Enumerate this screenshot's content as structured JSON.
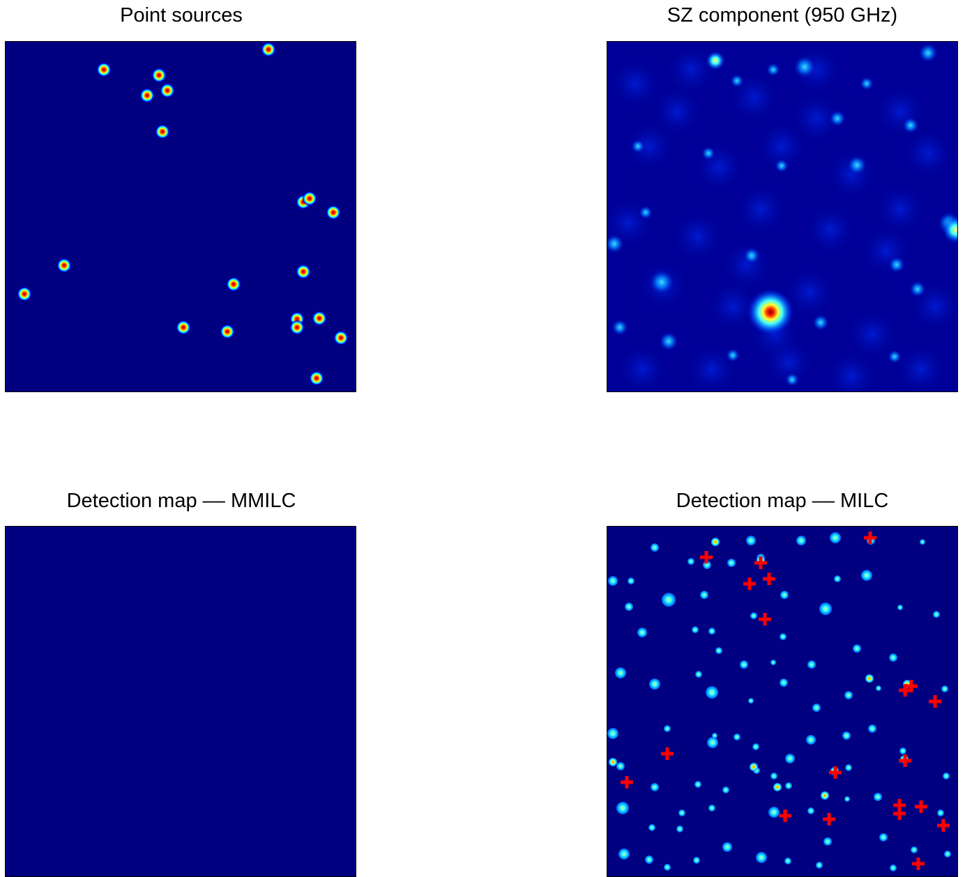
{
  "panels": {
    "point_sources": {
      "title": "Point sources"
    },
    "sz_component": {
      "title": "SZ component (950 GHz)"
    },
    "detection_mmilc": {
      "title": "Detection map –– MMILC"
    },
    "detection_milc": {
      "title": "Detection map –– MILC"
    }
  },
  "colors": {
    "background": "#000080",
    "colormap": [
      "#000080",
      "#0000ff",
      "#00ffff",
      "#ffff00",
      "#ff0000",
      "#800000"
    ],
    "marker": "#ff0000"
  },
  "icons": {
    "detection_marker": "red-plus-marker"
  }
}
